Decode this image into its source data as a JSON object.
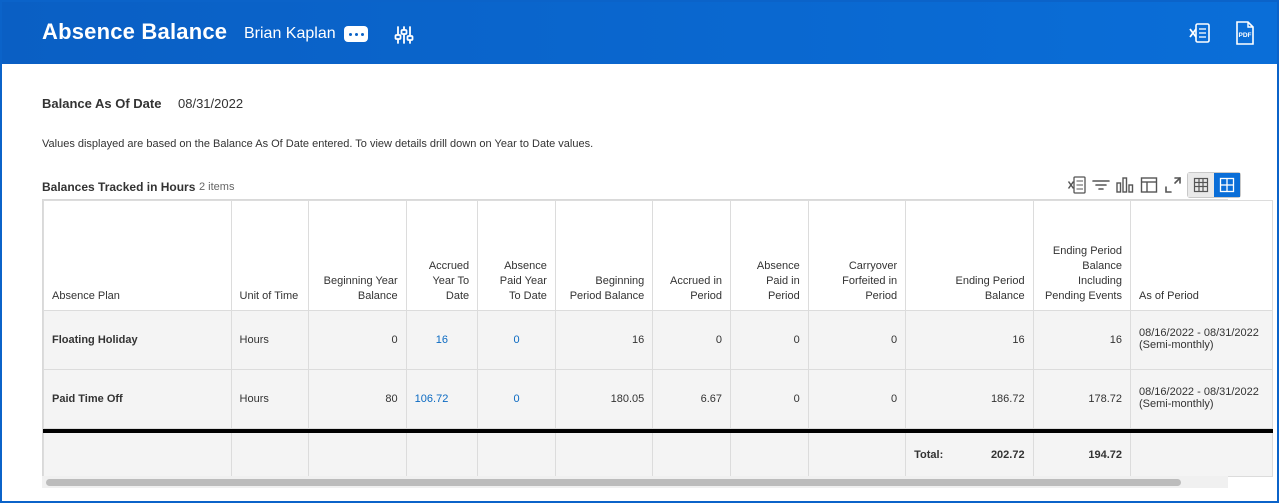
{
  "header": {
    "title": "Absence Balance",
    "worker": "Brian Kaplan"
  },
  "colors": {
    "header_blue": "#0a62c6",
    "link_blue": "#0b6ac2"
  },
  "balance": {
    "label": "Balance As Of Date",
    "date": "08/31/2022",
    "note": "Values displayed are based on the Balance As Of Date entered.  To view details drill down on Year to Date values."
  },
  "grid": {
    "title": "Balances Tracked in Hours",
    "count": "2 items",
    "toolbar_icons": [
      "export-excel-icon",
      "filter-icon",
      "chart-icon",
      "column-layout-icon",
      "fullscreen-icon",
      "table-view-icon",
      "grid-view-icon"
    ],
    "columns": [
      "Absence Plan",
      "Unit of Time",
      "Beginning Year Balance",
      "Accrued Year To Date",
      "Absence Paid Year To Date",
      "Beginning Period Balance",
      "Accrued in Period",
      "Absence Paid in Period",
      "Carryover Forfeited in Period",
      "Ending Period Balance",
      "Ending Period Balance Including Pending Events",
      "As of Period"
    ],
    "rows": [
      {
        "plan": "Floating Holiday",
        "unit": "Hours",
        "begin_year": "0",
        "accrued_ytd": "16",
        "paid_ytd": "0",
        "begin_period": "16",
        "accrued_period": "0",
        "paid_period": "0",
        "carryover": "0",
        "ending": "16",
        "ending_pending": "16",
        "as_of": "08/16/2022 - 08/31/2022",
        "as_of_note": "(Semi-monthly)"
      },
      {
        "plan": "Paid Time Off",
        "unit": "Hours",
        "begin_year": "80",
        "accrued_ytd": "106.72",
        "paid_ytd": "0",
        "begin_period": "180.05",
        "accrued_period": "6.67",
        "paid_period": "0",
        "carryover": "0",
        "ending": "186.72",
        "ending_pending": "178.72",
        "as_of": "08/16/2022 - 08/31/2022",
        "as_of_note": "(Semi-monthly)"
      }
    ],
    "total": {
      "label": "Total:",
      "ending": "202.72",
      "ending_pending": "194.72"
    }
  }
}
